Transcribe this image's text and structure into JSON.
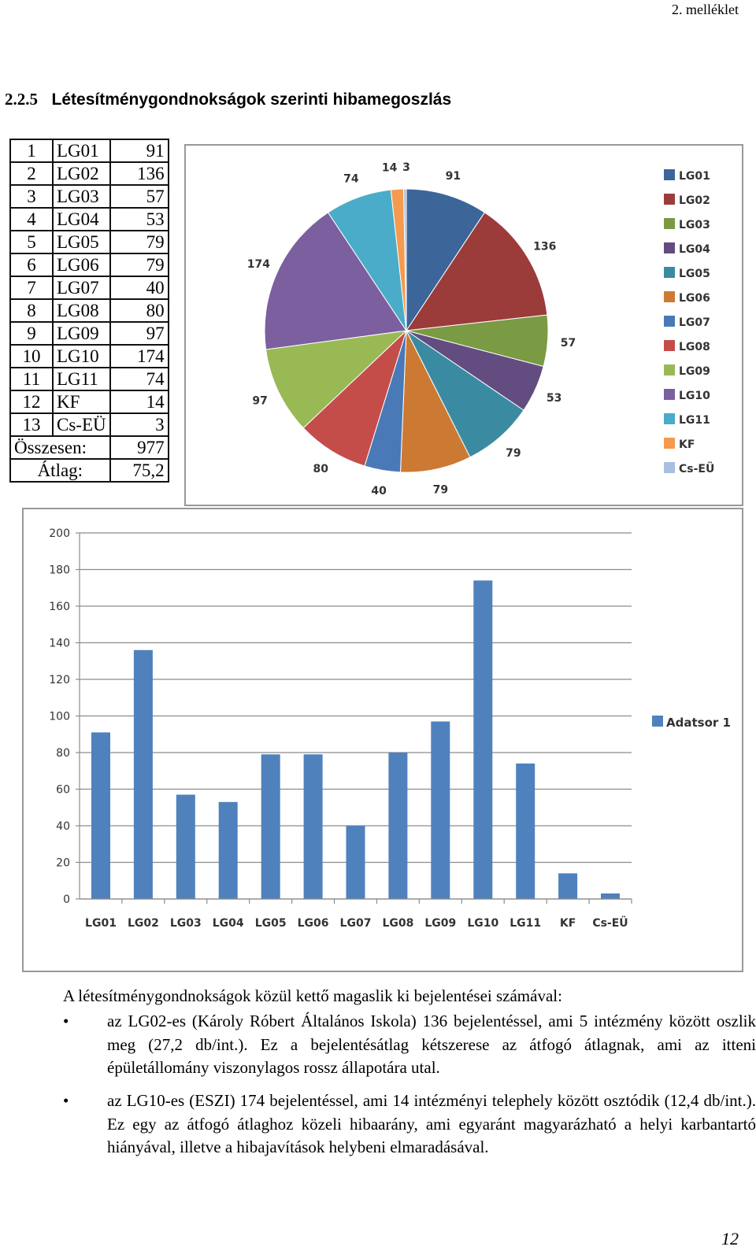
{
  "header": {
    "annex": "2. melléklet"
  },
  "section": {
    "number": "2.2.5",
    "title": "Létesítménygondnokságok szerinti hibamegoszlás"
  },
  "table": {
    "rows": [
      {
        "idx": "1",
        "name": "LG01",
        "value": "91"
      },
      {
        "idx": "2",
        "name": "LG02",
        "value": "136"
      },
      {
        "idx": "3",
        "name": "LG03",
        "value": "57"
      },
      {
        "idx": "4",
        "name": "LG04",
        "value": "53"
      },
      {
        "idx": "5",
        "name": "LG05",
        "value": "79"
      },
      {
        "idx": "6",
        "name": "LG06",
        "value": "79"
      },
      {
        "idx": "7",
        "name": "LG07",
        "value": "40"
      },
      {
        "idx": "8",
        "name": "LG08",
        "value": "80"
      },
      {
        "idx": "9",
        "name": "LG09",
        "value": "97"
      },
      {
        "idx": "10",
        "name": "LG10",
        "value": "174"
      },
      {
        "idx": "11",
        "name": "LG11",
        "value": "74"
      },
      {
        "idx": "12",
        "name": "KF",
        "value": "14"
      },
      {
        "idx": "13",
        "name": "Cs-EÜ",
        "value": "3"
      }
    ],
    "total_label": "Összesen:",
    "total_value": "977",
    "avg_label": "Átlag:",
    "avg_value": "75,2"
  },
  "chart_data": [
    {
      "type": "pie",
      "categories": [
        "LG01",
        "LG02",
        "LG03",
        "LG04",
        "LG05",
        "LG06",
        "LG07",
        "LG08",
        "LG09",
        "LG10",
        "LG11",
        "KF",
        "Cs-EÜ"
      ],
      "values": [
        91,
        136,
        57,
        53,
        79,
        79,
        40,
        80,
        97,
        174,
        74,
        14,
        3
      ],
      "data_labels": [
        "91",
        "136",
        "57",
        "53",
        "79",
        "79",
        "40",
        "80",
        "97",
        "174",
        "74",
        "14",
        "3"
      ],
      "colors": [
        "#3c6699",
        "#9b3c3b",
        "#7a9a43",
        "#634d80",
        "#3a8ba1",
        "#cc7a33",
        "#4a79b8",
        "#c44d4a",
        "#99b955",
        "#7b5f9f",
        "#4aacc8",
        "#f59a4e",
        "#a9bfe0"
      ],
      "legend": "right"
    },
    {
      "type": "bar",
      "categories": [
        "LG01",
        "LG02",
        "LG03",
        "LG04",
        "LG05",
        "LG06",
        "LG07",
        "LG08",
        "LG09",
        "LG10",
        "LG11",
        "KF",
        "Cs-EÜ"
      ],
      "series": [
        {
          "name": "Adatsor 1",
          "values": [
            91,
            136,
            57,
            53,
            79,
            79,
            40,
            80,
            97,
            174,
            74,
            14,
            3
          ]
        }
      ],
      "ylim": [
        0,
        200
      ],
      "yticks": [
        "0",
        "20",
        "40",
        "60",
        "80",
        "100",
        "120",
        "140",
        "160",
        "180",
        "200"
      ],
      "grid": true,
      "bar_color": "#4f81bd",
      "legend": "right"
    }
  ],
  "text": {
    "intro": "A létesítménygondnokságok közül kettő magaslik ki bejelentései számával:",
    "bullet_symbol": "•",
    "bullet1": "az LG02-es (Károly Róbert Általános Iskola) 136 bejelentéssel, ami 5 intézmény között oszlik meg (27,2 db/int.). Ez a bejelentésátlag kétszerese az átfogó átlagnak, ami az itteni épületállomány viszonylagos rossz állapotára utal.",
    "bullet2": "az LG10-es (ESZI) 174 bejelentéssel, ami 14 intézményi telephely között osztódik (12,4 db/int.). Ez egy az átfogó átlaghoz közeli hibaarány, ami egyaránt magyarázható a helyi karbantartó hiányával, illetve a hibajavítások helybeni elmaradásával."
  },
  "footer": {
    "page_number": "12"
  }
}
